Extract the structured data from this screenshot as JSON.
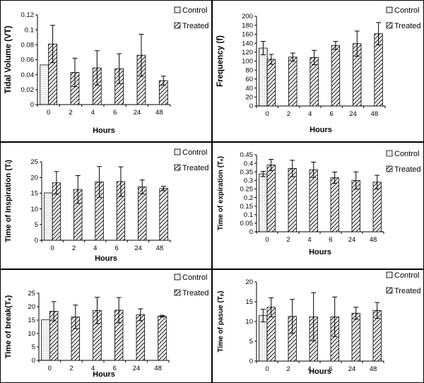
{
  "chart_data": [
    {
      "type": "bar",
      "panel": "top-left",
      "ylabel": "Tidal Volume (VT)",
      "xlabel": "Hours",
      "categories": [
        "0",
        "2",
        "4",
        "6",
        "24",
        "48"
      ],
      "ylim": [
        0,
        0.12
      ],
      "yticks": [
        "0",
        "0.02",
        "0.04",
        "0.06",
        "0.08",
        "0.1",
        "0.12"
      ],
      "legend_position": "top-right",
      "series": [
        {
          "name": "Control",
          "values": [
            0.053,
            null,
            null,
            null,
            null,
            null
          ],
          "errors": [
            0,
            null,
            null,
            null,
            null,
            null
          ]
        },
        {
          "name": "Treated",
          "values": [
            0.081,
            0.043,
            0.049,
            0.048,
            0.066,
            0.032
          ],
          "errors": [
            0.025,
            0.019,
            0.023,
            0.02,
            0.028,
            0.006
          ]
        }
      ]
    },
    {
      "type": "bar",
      "panel": "top-right",
      "ylabel": "Frequency (f)",
      "xlabel": "Hours",
      "categories": [
        "0",
        "2",
        "4",
        "6",
        "24",
        "48"
      ],
      "ylim": [
        0,
        200
      ],
      "yticks": [
        "0",
        "20",
        "40",
        "60",
        "80",
        "100",
        "120",
        "140",
        "160",
        "180",
        "200"
      ],
      "legend_position": "top-right",
      "series": [
        {
          "name": "Control",
          "values": [
            129,
            null,
            null,
            null,
            null,
            null
          ],
          "errors": [
            15,
            null,
            null,
            null,
            null,
            null
          ]
        },
        {
          "name": "Treated",
          "values": [
            104,
            109,
            108,
            135,
            139,
            161
          ],
          "errors": [
            11,
            9,
            16,
            9,
            28,
            25
          ]
        }
      ]
    },
    {
      "type": "bar",
      "panel": "middle-left",
      "ylabel": "Time of Inspiration (Tᵢ)",
      "xlabel": "Hours",
      "categories": [
        "0",
        "2",
        "4",
        "6",
        "24",
        "48"
      ],
      "ylim": [
        0,
        25
      ],
      "yticks": [
        "0",
        "5",
        "10",
        "15",
        "20",
        "25"
      ],
      "legend_position": "top-right",
      "series": [
        {
          "name": "Control",
          "values": [
            15.1,
            null,
            null,
            null,
            null,
            null
          ],
          "errors": [
            0,
            null,
            null,
            null,
            null,
            null
          ]
        },
        {
          "name": "Treated",
          "values": [
            18.3,
            16.2,
            18.6,
            18.7,
            17,
            16.5
          ],
          "errors": [
            3.6,
            4.4,
            4.9,
            4.7,
            2.2,
            0.7
          ]
        }
      ]
    },
    {
      "type": "bar",
      "panel": "middle-right",
      "ylabel": "Time of expiration (Tₑ)",
      "xlabel": "Hours",
      "categories": [
        "0",
        "2",
        "4",
        "6",
        "24",
        "48"
      ],
      "ylim": [
        0,
        0.45
      ],
      "yticks": [
        "0",
        "0.05",
        "0.1",
        "0.15",
        "0.2",
        "0.25",
        "0.3",
        "0.35",
        "0.4",
        "0.45"
      ],
      "legend_position": "top-right",
      "series": [
        {
          "name": "Control",
          "values": [
            0.338,
            null,
            null,
            null,
            null,
            null
          ],
          "errors": [
            0.015,
            null,
            null,
            null,
            null,
            null
          ]
        },
        {
          "name": "Treated",
          "values": [
            0.39,
            0.37,
            0.362,
            0.316,
            0.3,
            0.29
          ],
          "errors": [
            0.033,
            0.048,
            0.045,
            0.033,
            0.05,
            0.04
          ]
        }
      ]
    },
    {
      "type": "bar",
      "panel": "bottom-left",
      "ylabel": "Time of break(Tₑ)",
      "xlabel": "Hours",
      "categories": [
        "0",
        "2",
        "4",
        "6",
        "24",
        "48"
      ],
      "ylim": [
        0,
        25
      ],
      "yticks": [
        "0",
        "5",
        "10",
        "15",
        "20",
        "25"
      ],
      "legend_position": "top-right",
      "series": [
        {
          "name": "Control",
          "values": [
            15.1,
            null,
            null,
            null,
            null,
            null
          ],
          "errors": [
            0,
            null,
            null,
            null,
            null,
            null
          ]
        },
        {
          "name": "Treated",
          "values": [
            18.3,
            16.2,
            18.6,
            18.7,
            17,
            16.5
          ],
          "errors": [
            3.6,
            4.4,
            4.9,
            4.7,
            2.2,
            0.3
          ]
        }
      ]
    },
    {
      "type": "bar",
      "panel": "bottom-right",
      "ylabel": "Time of pasue (Tₚ)",
      "xlabel": "Hours",
      "categories": [
        "0",
        "2",
        "4",
        "6",
        "24",
        "48"
      ],
      "ylim": [
        0,
        20
      ],
      "yticks": [
        "0",
        "5",
        "10",
        "15",
        "20"
      ],
      "legend_position": "top-right",
      "series": [
        {
          "name": "Control",
          "values": [
            11.5,
            null,
            null,
            null,
            null,
            null
          ],
          "errors": [
            1.6,
            null,
            null,
            null,
            null,
            null
          ]
        },
        {
          "name": "Treated",
          "values": [
            13.6,
            11.3,
            11.2,
            11.2,
            12.1,
            12.8
          ],
          "errors": [
            2.4,
            4.3,
            6.1,
            5,
            1.5,
            2
          ]
        }
      ]
    }
  ],
  "colors": {
    "control_fill": "#ffffff",
    "control_dots": "#555555",
    "treated_fill": "#ffffff",
    "treated_hatch": "#222222",
    "axis": "#000000",
    "frame": "#000000"
  }
}
